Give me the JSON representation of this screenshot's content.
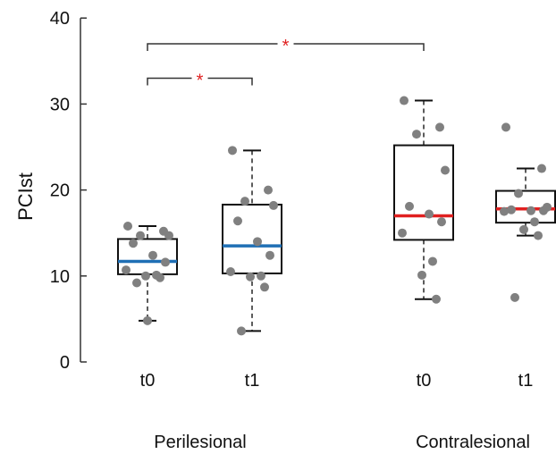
{
  "chart_data": {
    "type": "box",
    "title": "",
    "ylabel": "PCIst",
    "ylim": [
      0,
      40
    ],
    "yticks": [
      0,
      10,
      20,
      30,
      40
    ],
    "groups": [
      "Perilesional",
      "Contralesional"
    ],
    "box_color": "#111111",
    "point_color": "#808080",
    "series": [
      {
        "group": "Perilesional",
        "label": "t0",
        "median_color": "#1f6fb5",
        "min": 4.8,
        "q1": 10.2,
        "median": 11.7,
        "q3": 14.3,
        "max": 15.8,
        "points": [
          15.8,
          15.2,
          14.7,
          14.7,
          13.8,
          12.4,
          11.6,
          10.7,
          10.1,
          10.0,
          9.8,
          9.2,
          4.8
        ]
      },
      {
        "group": "Perilesional",
        "label": "t1",
        "median_color": "#1f6fb5",
        "min": 3.6,
        "q1": 10.3,
        "median": 13.5,
        "q3": 18.3,
        "max": 24.6,
        "points": [
          24.6,
          20.0,
          18.7,
          18.2,
          16.4,
          14.0,
          12.4,
          10.5,
          10.0,
          9.9,
          8.7,
          3.6
        ]
      },
      {
        "group": "Contralesional",
        "label": "t0",
        "median_color": "#e02020",
        "min": 7.3,
        "q1": 14.2,
        "median": 17.0,
        "q3": 25.2,
        "max": 30.4,
        "points": [
          30.4,
          27.3,
          26.5,
          22.3,
          18.1,
          17.2,
          16.3,
          15.0,
          11.7,
          10.1,
          7.3
        ]
      },
      {
        "group": "Contralesional",
        "label": "t1",
        "median_color": "#e02020",
        "min": 14.7,
        "q1": 16.2,
        "median": 17.8,
        "q3": 19.9,
        "max": 22.5,
        "points": [
          27.3,
          22.5,
          19.6,
          18.0,
          17.7,
          17.6,
          17.6,
          17.5,
          16.3,
          15.4,
          14.7,
          7.5
        ]
      }
    ],
    "significance": [
      {
        "from": 0,
        "to": 1,
        "label": "*",
        "y": 33
      },
      {
        "from": 0,
        "to": 2,
        "label": "*",
        "y": 37
      }
    ]
  }
}
